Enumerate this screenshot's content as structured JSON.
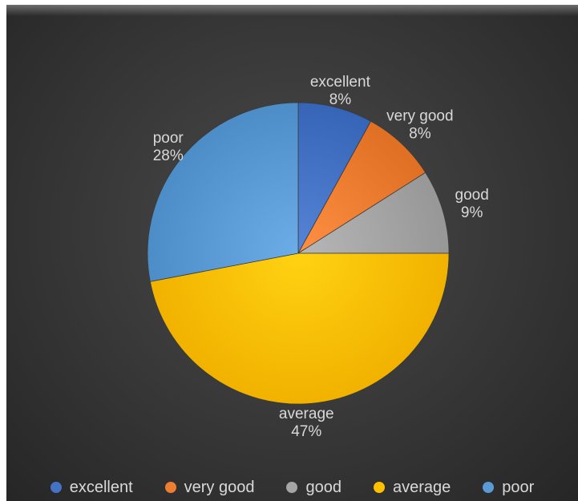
{
  "chart_data": {
    "type": "pie",
    "title": "",
    "slices": [
      {
        "label": "excellent",
        "value": 8,
        "display": "8%",
        "color": "#4472c4"
      },
      {
        "label": "very good",
        "value": 8,
        "display": "8%",
        "color": "#ed7d31"
      },
      {
        "label": "good",
        "value": 9,
        "display": "9%",
        "color": "#a5a5a5"
      },
      {
        "label": "average",
        "value": 47,
        "display": "47%",
        "color": "#ffc000"
      },
      {
        "label": "poor",
        "value": 28,
        "display": "28%",
        "color": "#5b9bd5"
      }
    ],
    "legend_position": "bottom",
    "start_angle": "12 o'clock, clockwise",
    "background": "#333333",
    "label_color": "#d9d9d9"
  }
}
